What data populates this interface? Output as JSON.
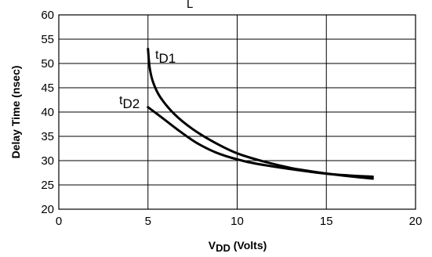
{
  "chart_data": {
    "type": "line",
    "title_fragment": "L",
    "xlabel": "V",
    "xlabel_sub": "DD",
    "xlabel_suffix": " (Volts)",
    "ylabel": "Delay Time (nsec)",
    "xlim": [
      0,
      20
    ],
    "ylim": [
      20,
      60
    ],
    "x_ticks": [
      0,
      5,
      10,
      15,
      20
    ],
    "y_ticks": [
      20,
      25,
      30,
      35,
      40,
      45,
      50,
      55,
      60
    ],
    "x_tick_labels": [
      "0",
      "5",
      "10",
      "15",
      "20"
    ],
    "y_tick_labels": [
      "20",
      "25",
      "30",
      "35",
      "40",
      "45",
      "50",
      "55",
      "60"
    ],
    "grid": true,
    "series": [
      {
        "name": "t",
        "name_sub": "D1",
        "points": [
          [
            5.0,
            53.0
          ],
          [
            5.1,
            49.0
          ],
          [
            5.3,
            46.0
          ],
          [
            5.7,
            43.0
          ],
          [
            6.5,
            39.5
          ],
          [
            7.5,
            36.5
          ],
          [
            8.7,
            33.8
          ],
          [
            10.0,
            31.5
          ],
          [
            11.5,
            29.8
          ],
          [
            13.0,
            28.5
          ],
          [
            14.5,
            27.6
          ],
          [
            16.0,
            26.9
          ],
          [
            17.6,
            26.3
          ]
        ]
      },
      {
        "name": "t",
        "name_sub": "D2",
        "points": [
          [
            5.0,
            41.0
          ],
          [
            5.8,
            38.8
          ],
          [
            6.8,
            36.0
          ],
          [
            7.8,
            33.5
          ],
          [
            9.0,
            31.4
          ],
          [
            10.5,
            29.8
          ],
          [
            12.0,
            28.8
          ],
          [
            13.5,
            28.0
          ],
          [
            15.0,
            27.3
          ],
          [
            16.5,
            26.9
          ],
          [
            17.6,
            26.7
          ]
        ]
      }
    ]
  }
}
